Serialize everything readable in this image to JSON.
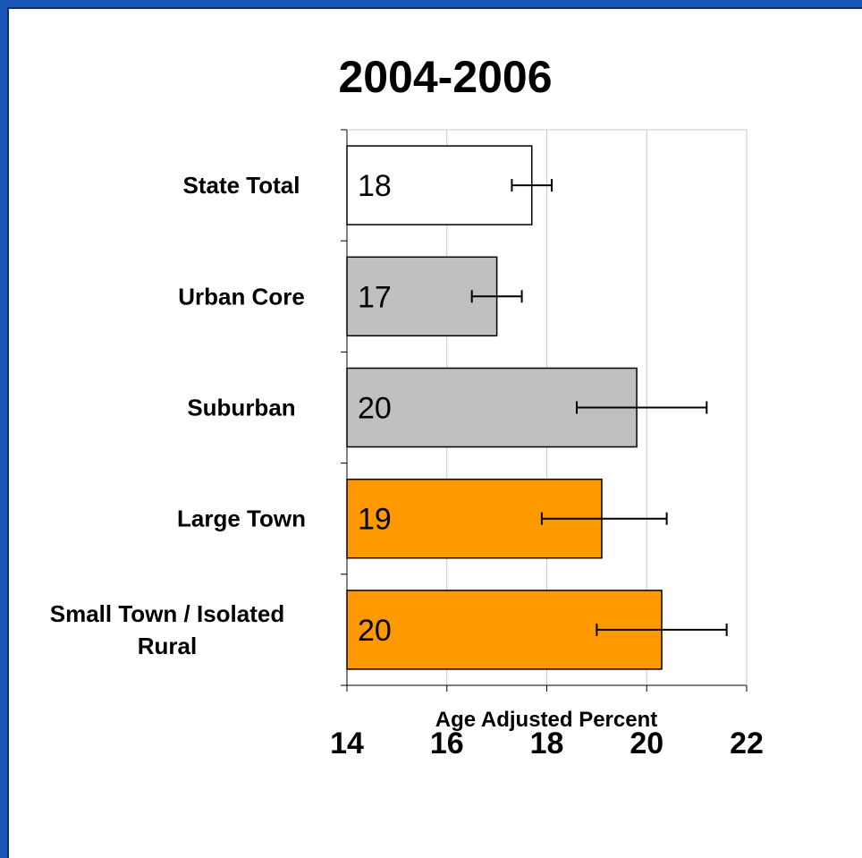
{
  "colors": {
    "background_border": "#1a56b8",
    "plot_background": "#ffffff",
    "gridline": "#c8c8c8",
    "bar_outline": "#000000",
    "error_bar": "#000000"
  },
  "chart_data": {
    "type": "bar",
    "orientation": "horizontal",
    "title": "2004-2006",
    "xlabel": "Age Adjusted Percent",
    "ylabel": "",
    "xlim": [
      14,
      22
    ],
    "xticks": [
      "14",
      "16",
      "18",
      "20",
      "22"
    ],
    "xtick_values": [
      14,
      16,
      18,
      20,
      22
    ],
    "grid": "vertical gridlines",
    "legend": "none",
    "categories": [
      "State Total",
      "Urban Core",
      "Suburban",
      "Large Town",
      "Small Town / Isolated Rural"
    ],
    "category_label_lines": [
      [
        "State Total"
      ],
      [
        "Urban Core"
      ],
      [
        "Suburban"
      ],
      [
        "Large Town"
      ],
      [
        "Small Town / Isolated",
        "Rural"
      ]
    ],
    "values": [
      17.7,
      17.0,
      19.8,
      19.1,
      20.3
    ],
    "data_labels": [
      "18",
      "17",
      "20",
      "19",
      "20"
    ],
    "error_low": [
      17.3,
      16.5,
      18.6,
      17.9,
      19.0
    ],
    "error_high": [
      18.1,
      17.5,
      21.2,
      20.4,
      21.6
    ],
    "bar_colors": [
      "#ffffff",
      "#c0c0c0",
      "#c0c0c0",
      "#ff9900",
      "#ff9900"
    ]
  }
}
